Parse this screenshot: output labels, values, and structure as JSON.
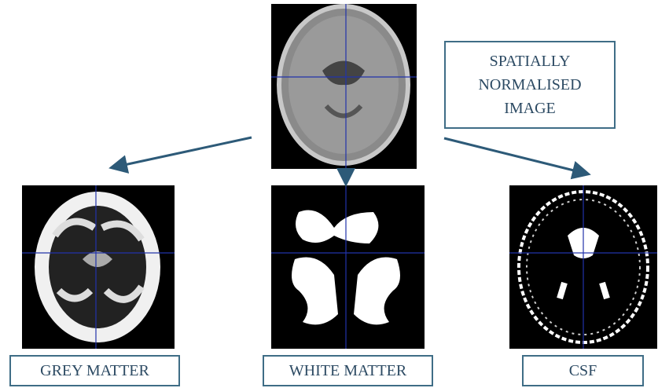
{
  "source": {
    "label_lines": [
      "SPATIALLY",
      "NORMALISED",
      "IMAGE"
    ]
  },
  "outputs": [
    {
      "label": "GREY MATTER"
    },
    {
      "label": "WHITE MATTER"
    },
    {
      "label": "CSF"
    }
  ]
}
